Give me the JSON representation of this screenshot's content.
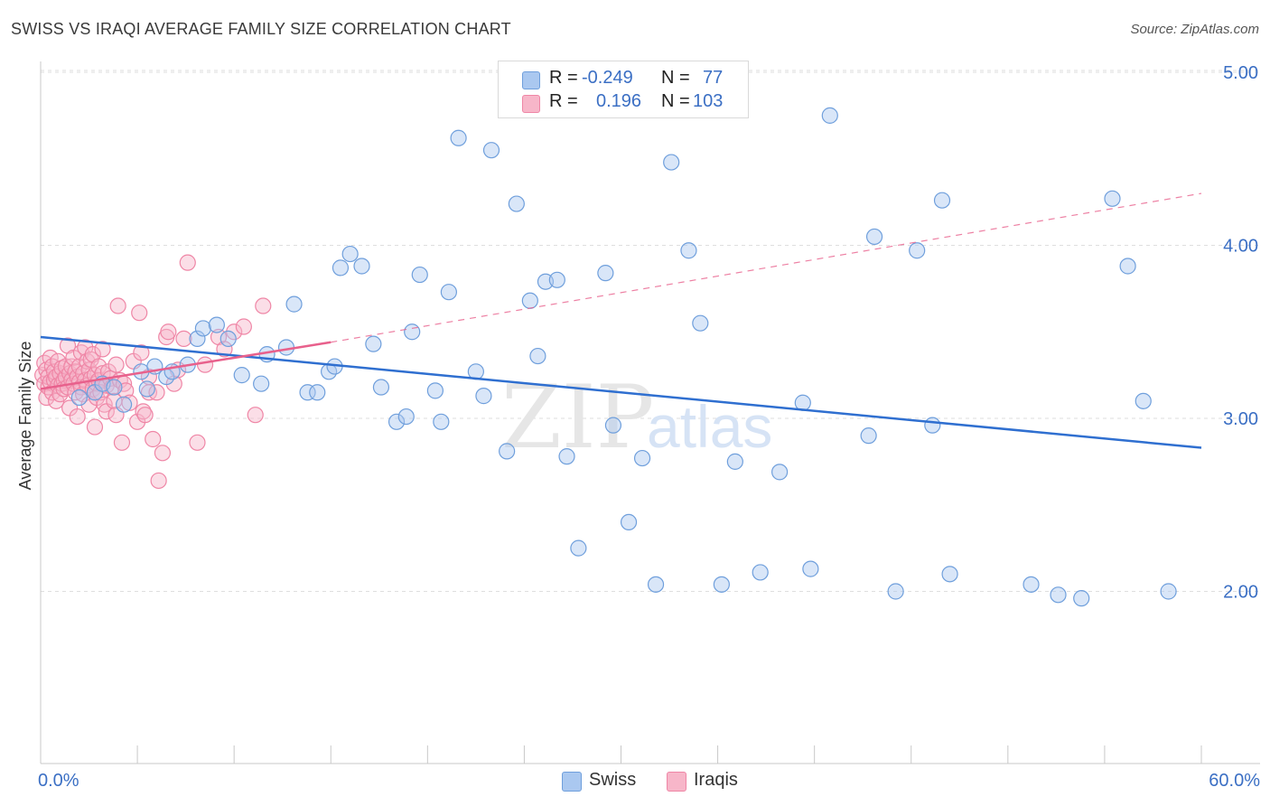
{
  "header": {
    "title": "SWISS VS IRAQI AVERAGE FAMILY SIZE CORRELATION CHART",
    "source": "Source: ZipAtlas.com"
  },
  "legend": {
    "rows": [
      {
        "r_label": "R =",
        "r_value": "-0.249",
        "n_label": "N =",
        "n_value": "77"
      },
      {
        "r_label": "R =",
        "r_value": "0.196",
        "n_label": "N =",
        "n_value": "103"
      }
    ]
  },
  "watermark": {
    "zip": "ZIP",
    "atlas": "atlas"
  },
  "colors": {
    "swiss_fill": "#aac8f0",
    "swiss_stroke": "#6f9fdc",
    "swiss_line": "#2f6fd0",
    "iraqi_fill": "#f7b6c9",
    "iraqi_stroke": "#ef86a6",
    "iraqi_line": "#e8608c",
    "axis_label": "#3b6fc4",
    "grid": "#dedede"
  },
  "chart_data": {
    "type": "scatter",
    "title": "SWISS VS IRAQI AVERAGE FAMILY SIZE CORRELATION CHART",
    "xlabel": "",
    "ylabel": "Average Family Size",
    "xlim": [
      0,
      60
    ],
    "ylim": [
      1.0,
      5.1
    ],
    "x_tick_labels": [
      "0.0%",
      "60.0%"
    ],
    "y_ticks": [
      {
        "value": 2.0,
        "label": "2.00"
      },
      {
        "value": 3.0,
        "label": "3.00"
      },
      {
        "value": 4.0,
        "label": "4.00"
      },
      {
        "value": 5.0,
        "label": "5.00"
      }
    ],
    "grid": true,
    "legend_position": "top-center",
    "series": [
      {
        "name": "Swiss",
        "trend": {
          "x": [
            0,
            60
          ],
          "y": [
            3.47,
            2.83
          ],
          "style": "solid"
        },
        "points": [
          [
            2.0,
            3.12
          ],
          [
            2.8,
            3.15
          ],
          [
            3.2,
            3.2
          ],
          [
            3.8,
            3.18
          ],
          [
            4.3,
            3.08
          ],
          [
            5.2,
            3.27
          ],
          [
            5.5,
            3.17
          ],
          [
            5.9,
            3.3
          ],
          [
            6.5,
            3.24
          ],
          [
            6.8,
            3.27
          ],
          [
            7.6,
            3.31
          ],
          [
            8.1,
            3.46
          ],
          [
            8.4,
            3.52
          ],
          [
            9.1,
            3.54
          ],
          [
            9.7,
            3.46
          ],
          [
            10.4,
            3.25
          ],
          [
            11.4,
            3.2
          ],
          [
            11.7,
            3.37
          ],
          [
            12.7,
            3.41
          ],
          [
            13.1,
            3.66
          ],
          [
            13.8,
            3.15
          ],
          [
            14.3,
            3.15
          ],
          [
            14.9,
            3.27
          ],
          [
            15.2,
            3.3
          ],
          [
            15.5,
            3.87
          ],
          [
            16.0,
            3.95
          ],
          [
            16.6,
            3.88
          ],
          [
            17.2,
            3.43
          ],
          [
            17.6,
            3.18
          ],
          [
            18.4,
            2.98
          ],
          [
            18.9,
            3.01
          ],
          [
            19.2,
            3.5
          ],
          [
            19.6,
            3.83
          ],
          [
            20.4,
            3.16
          ],
          [
            20.7,
            2.98
          ],
          [
            21.1,
            3.73
          ],
          [
            21.6,
            4.62
          ],
          [
            22.5,
            3.27
          ],
          [
            22.9,
            3.13
          ],
          [
            23.3,
            4.55
          ],
          [
            24.1,
            2.81
          ],
          [
            24.6,
            4.24
          ],
          [
            25.3,
            3.68
          ],
          [
            25.7,
            3.36
          ],
          [
            26.1,
            3.79
          ],
          [
            26.7,
            3.8
          ],
          [
            27.2,
            2.78
          ],
          [
            27.8,
            2.25
          ],
          [
            29.2,
            3.84
          ],
          [
            29.6,
            2.96
          ],
          [
            30.4,
            2.4
          ],
          [
            31.1,
            2.77
          ],
          [
            31.8,
            2.04
          ],
          [
            32.6,
            4.48
          ],
          [
            33.5,
            3.97
          ],
          [
            34.1,
            3.55
          ],
          [
            35.2,
            2.04
          ],
          [
            35.9,
            2.75
          ],
          [
            37.2,
            2.11
          ],
          [
            38.2,
            2.69
          ],
          [
            39.4,
            3.09
          ],
          [
            39.8,
            2.13
          ],
          [
            40.8,
            4.75
          ],
          [
            42.8,
            2.9
          ],
          [
            43.1,
            4.05
          ],
          [
            44.2,
            2.0
          ],
          [
            45.3,
            3.97
          ],
          [
            46.1,
            2.96
          ],
          [
            46.6,
            4.26
          ],
          [
            47.0,
            2.1
          ],
          [
            51.2,
            2.04
          ],
          [
            52.6,
            1.98
          ],
          [
            53.8,
            1.96
          ],
          [
            55.4,
            4.27
          ],
          [
            56.2,
            3.88
          ],
          [
            57.0,
            3.1
          ],
          [
            58.3,
            2.0
          ]
        ]
      },
      {
        "name": "Iraqis",
        "trend": {
          "x": [
            0,
            15
          ],
          "y": [
            3.17,
            3.44
          ],
          "style": "solid"
        },
        "trend_extension": {
          "x": [
            15,
            60
          ],
          "y": [
            3.44,
            4.3
          ],
          "style": "dashed"
        },
        "points": [
          [
            0.1,
            3.25
          ],
          [
            0.2,
            3.2
          ],
          [
            0.2,
            3.32
          ],
          [
            0.3,
            3.12
          ],
          [
            0.3,
            3.28
          ],
          [
            0.4,
            3.18
          ],
          [
            0.4,
            3.24
          ],
          [
            0.5,
            3.35
          ],
          [
            0.5,
            3.21
          ],
          [
            0.6,
            3.15
          ],
          [
            0.6,
            3.3
          ],
          [
            0.7,
            3.22
          ],
          [
            0.7,
            3.27
          ],
          [
            0.8,
            3.1
          ],
          [
            0.8,
            3.24
          ],
          [
            0.9,
            3.19
          ],
          [
            0.9,
            3.33
          ],
          [
            1.0,
            3.26
          ],
          [
            1.0,
            3.14
          ],
          [
            1.1,
            3.2
          ],
          [
            1.1,
            3.29
          ],
          [
            1.2,
            3.22
          ],
          [
            1.2,
            3.17
          ],
          [
            1.3,
            3.24
          ],
          [
            1.3,
            3.3
          ],
          [
            1.4,
            3.42
          ],
          [
            1.4,
            3.18
          ],
          [
            1.5,
            3.26
          ],
          [
            1.5,
            3.06
          ],
          [
            1.6,
            3.22
          ],
          [
            1.6,
            3.3
          ],
          [
            1.7,
            3.35
          ],
          [
            1.7,
            3.2
          ],
          [
            1.8,
            3.15
          ],
          [
            1.8,
            3.27
          ],
          [
            1.9,
            3.01
          ],
          [
            1.9,
            3.24
          ],
          [
            2.0,
            3.21
          ],
          [
            2.0,
            3.3
          ],
          [
            2.1,
            3.38
          ],
          [
            2.1,
            3.18
          ],
          [
            2.2,
            3.26
          ],
          [
            2.2,
            3.14
          ],
          [
            2.3,
            3.41
          ],
          [
            2.3,
            3.22
          ],
          [
            2.4,
            3.33
          ],
          [
            2.4,
            3.19
          ],
          [
            2.5,
            3.28
          ],
          [
            2.5,
            3.08
          ],
          [
            2.6,
            3.23
          ],
          [
            2.6,
            3.34
          ],
          [
            2.7,
            3.37
          ],
          [
            2.7,
            3.17
          ],
          [
            2.8,
            2.95
          ],
          [
            2.8,
            3.25
          ],
          [
            2.9,
            3.2
          ],
          [
            2.9,
            3.12
          ],
          [
            3.0,
            3.3
          ],
          [
            3.0,
            3.22
          ],
          [
            3.1,
            3.15
          ],
          [
            3.2,
            3.4
          ],
          [
            3.2,
            3.26
          ],
          [
            3.3,
            3.08
          ],
          [
            3.4,
            3.19
          ],
          [
            3.4,
            3.04
          ],
          [
            3.5,
            3.27
          ],
          [
            3.6,
            3.23
          ],
          [
            3.7,
            3.18
          ],
          [
            3.8,
            3.1
          ],
          [
            3.9,
            3.31
          ],
          [
            3.9,
            3.02
          ],
          [
            4.0,
            3.65
          ],
          [
            4.1,
            3.22
          ],
          [
            4.2,
            2.86
          ],
          [
            4.3,
            3.2
          ],
          [
            4.4,
            3.16
          ],
          [
            4.6,
            3.09
          ],
          [
            4.8,
            3.33
          ],
          [
            5.0,
            2.98
          ],
          [
            5.1,
            3.61
          ],
          [
            5.2,
            3.38
          ],
          [
            5.3,
            3.04
          ],
          [
            5.4,
            3.02
          ],
          [
            5.6,
            3.15
          ],
          [
            5.6,
            3.24
          ],
          [
            5.8,
            2.88
          ],
          [
            6.0,
            3.15
          ],
          [
            6.1,
            2.64
          ],
          [
            6.3,
            2.8
          ],
          [
            6.5,
            3.47
          ],
          [
            6.6,
            3.5
          ],
          [
            6.9,
            3.2
          ],
          [
            7.1,
            3.28
          ],
          [
            7.4,
            3.46
          ],
          [
            7.6,
            3.9
          ],
          [
            8.1,
            2.86
          ],
          [
            8.5,
            3.31
          ],
          [
            9.2,
            3.47
          ],
          [
            9.5,
            3.4
          ],
          [
            10.0,
            3.5
          ],
          [
            10.5,
            3.53
          ],
          [
            11.1,
            3.02
          ],
          [
            11.5,
            3.65
          ]
        ]
      }
    ]
  },
  "bottom_legend": {
    "items": [
      "Swiss",
      "Iraqis"
    ]
  }
}
